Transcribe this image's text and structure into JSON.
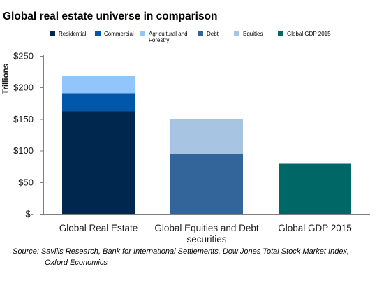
{
  "chart_data": {
    "type": "bar",
    "stacked": true,
    "title": "Global real estate universe in comparison",
    "ylabel": "Trillions",
    "ylim": [
      0,
      250
    ],
    "yticks": [
      0,
      50,
      100,
      150,
      200,
      250
    ],
    "ytick_labels": [
      "$-",
      "$50",
      "$100",
      "$150",
      "$200",
      "$250"
    ],
    "categories": [
      [
        "Global Real Estate"
      ],
      [
        "Global Equities and Debt",
        "securities"
      ],
      [
        "Global GDP 2015"
      ]
    ],
    "series": [
      {
        "name": "Residential",
        "color": "#00274d",
        "values": [
          162,
          0,
          0
        ]
      },
      {
        "name": "Commercial",
        "color": "#0157aa",
        "values": [
          29,
          0,
          0
        ]
      },
      {
        "name": "Agricultural and Forestry",
        "color": "#92c5f9",
        "values": [
          27,
          0,
          0
        ]
      },
      {
        "name": "Debt",
        "color": "#33659b",
        "values": [
          0,
          94,
          0
        ]
      },
      {
        "name": "Equities",
        "color": "#a8c4e3",
        "values": [
          0,
          56,
          0
        ]
      },
      {
        "name": "Global GDP 2015",
        "color": "#006767",
        "values": [
          0,
          0,
          80
        ]
      }
    ],
    "legend_lines": [
      [
        "Residential"
      ],
      [
        "Commercial"
      ],
      [
        "Agricultural and",
        "Forestry"
      ],
      [
        "Debt"
      ],
      [
        "Equities"
      ],
      [
        "Global GDP 2015"
      ]
    ],
    "legend_position": "top",
    "grid": false,
    "source_lines": [
      "Source: Savills Research, Bank for International Settlements, Dow Jones Total Stock Market Index,",
      "Oxford Economics"
    ]
  }
}
